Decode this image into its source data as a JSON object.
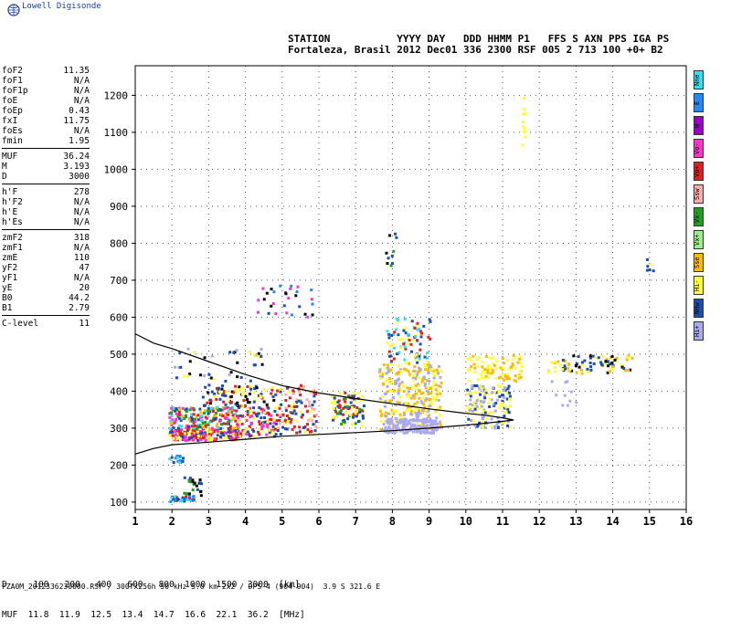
{
  "brand": "Lowell Digisonde",
  "header": {
    "line1": "STATION           YYYY DAY   DDD HHMM P1   FFS S AXN PPS IGA PS",
    "line2": "Fortaleza, Brasil 2012 Dec01 336 2300 RSF 005 2 713 100 +0+ B2"
  },
  "params": [
    [
      [
        "foF2",
        "11.35"
      ],
      [
        "foF1",
        "N/A"
      ],
      [
        "foF1p",
        "N/A"
      ],
      [
        "foE",
        "N/A"
      ],
      [
        "foEp",
        "0.43"
      ],
      [
        "fxI",
        "11.75"
      ],
      [
        "foEs",
        "N/A"
      ],
      [
        "fmin",
        "1.95"
      ]
    ],
    [
      [
        "MUF",
        "36.24"
      ],
      [
        "M",
        "3.193"
      ],
      [
        "D",
        "3000"
      ]
    ],
    [
      [
        "h'F",
        "278"
      ],
      [
        "h'F2",
        "N/A"
      ],
      [
        "h'E",
        "N/A"
      ],
      [
        "h'Es",
        "N/A"
      ]
    ],
    [
      [
        "zmF2",
        "318"
      ],
      [
        "zmF1",
        "N/A"
      ],
      [
        "zmE",
        "110"
      ],
      [
        "yF2",
        "47"
      ],
      [
        "yF1",
        "N/A"
      ],
      [
        "yE",
        "20"
      ],
      [
        "B0",
        "44.2"
      ],
      [
        "B1",
        "2.79"
      ]
    ],
    [
      [
        "C-level",
        "11"
      ]
    ]
  ],
  "legend": [
    {
      "label": "Nne",
      "color": "#33e0f0"
    },
    {
      "label": "E",
      "color": "#2288ff"
    },
    {
      "label": "W",
      "color": "#9a00c8"
    },
    {
      "label": "Vo-",
      "color": "#ff33d0"
    },
    {
      "label": "Vo+",
      "color": "#e02020"
    },
    {
      "label": "Ssw",
      "color": "#ffaaaa"
    },
    {
      "label": "Vx-",
      "color": "#20a020"
    },
    {
      "label": "Vx+",
      "color": "#99ee88"
    },
    {
      "label": "Sse",
      "color": "#ffbb00"
    },
    {
      "label": "Hi-",
      "color": "#ffff33"
    },
    {
      "label": "Nnw",
      "color": "#1a4fb0"
    },
    {
      "label": "Hi+",
      "color": "#aaaaee"
    }
  ],
  "muf_table": {
    "d_row": "D     100   200   400   600   800  1000  1500  3000  [km]",
    "muf_row": "MUF  11.8  11.9  12.5  13.4  14.7  16.6  22.1  36.2  [MHz]"
  },
  "footer": "FZA0M_2012336230000.RSF / 300fx256h 50 kHz 5.0 km 2x2 / DPS-4 (904-904)  3.9 S 321.6 E",
  "chart_data": {
    "type": "scatter",
    "xlim": [
      1,
      16
    ],
    "ylim": [
      80,
      1280
    ],
    "x_ticks": [
      "1",
      "2",
      "3",
      "4",
      "5",
      "6",
      "7",
      "8",
      "9",
      "10",
      "11",
      "12",
      "13",
      "14",
      "15",
      "16"
    ],
    "y_ticks": [
      "100",
      "200",
      "300",
      "400",
      "500",
      "600",
      "700",
      "800",
      "900",
      "1000",
      "1100",
      "1200"
    ],
    "grid": true,
    "profile_curve": [
      [
        1.0,
        230
      ],
      [
        1.5,
        245
      ],
      [
        2.0,
        255
      ],
      [
        3.0,
        262
      ],
      [
        4.0,
        270
      ],
      [
        5.0,
        278
      ],
      [
        6.0,
        283
      ],
      [
        7.0,
        288
      ],
      [
        8.0,
        293
      ],
      [
        9.0,
        300
      ],
      [
        10.0,
        308
      ],
      [
        10.8,
        316
      ],
      [
        11.3,
        322
      ],
      [
        11.0,
        328
      ],
      [
        10.5,
        335
      ],
      [
        10.0,
        340
      ],
      [
        9.0,
        352
      ],
      [
        8.0,
        366
      ],
      [
        7.0,
        380
      ],
      [
        6.0,
        395
      ],
      [
        5.0,
        415
      ],
      [
        4.0,
        445
      ],
      [
        3.0,
        480
      ],
      [
        2.0,
        515
      ],
      [
        1.5,
        530
      ],
      [
        1.0,
        555
      ]
    ],
    "echo_clusters": [
      {
        "x": [
          1.9,
          2.6
        ],
        "y": [
          105,
          120
        ],
        "colors": [
          "#33e0f0",
          "#2288ff",
          "#1a4fb0",
          "#e02020"
        ],
        "n": 40
      },
      {
        "x": [
          2.3,
          2.8
        ],
        "y": [
          120,
          175
        ],
        "colors": [
          "#20a020",
          "#1a4fb0",
          "#000000"
        ],
        "n": 25
      },
      {
        "x": [
          1.9,
          2.3
        ],
        "y": [
          210,
          230
        ],
        "colors": [
          "#2288ff",
          "#1a4fb0",
          "#33e0f0"
        ],
        "n": 15
      },
      {
        "x": [
          1.9,
          3.8
        ],
        "y": [
          270,
          300
        ],
        "colors": [
          "#e02020",
          "#ff33d0",
          "#1a4fb0",
          "#ffff33"
        ],
        "n": 220
      },
      {
        "x": [
          1.9,
          3.8
        ],
        "y": [
          300,
          360
        ],
        "colors": [
          "#e02020",
          "#1a4fb0",
          "#ff33d0",
          "#ffbb00",
          "#20a020",
          "#33e0f0"
        ],
        "n": 200
      },
      {
        "x": [
          2.8,
          4.8
        ],
        "y": [
          360,
          420
        ],
        "colors": [
          "#000000",
          "#ffff33",
          "#e02020",
          "#1a4fb0"
        ],
        "n": 90
      },
      {
        "x": [
          3.8,
          4.8
        ],
        "y": [
          280,
          360
        ],
        "colors": [
          "#ffff33",
          "#e02020",
          "#ff33d0",
          "#1a4fb0"
        ],
        "n": 100
      },
      {
        "x": [
          4.8,
          5.9
        ],
        "y": [
          285,
          420
        ],
        "colors": [
          "#ffff33",
          "#e02020",
          "#ffaaaa",
          "#1a4fb0"
        ],
        "n": 120
      },
      {
        "x": [
          6.3,
          7.2
        ],
        "y": [
          310,
          400
        ],
        "colors": [
          "#ffff33",
          "#e02020",
          "#20a020",
          "#1a4fb0"
        ],
        "n": 90
      },
      {
        "x": [
          7.6,
          9.3
        ],
        "y": [
          300,
          480
        ],
        "colors": [
          "#ffff33",
          "#aaaaee",
          "#ffbb00"
        ],
        "n": 320
      },
      {
        "x": [
          7.8,
          9.0
        ],
        "y": [
          480,
          600
        ],
        "colors": [
          "#ffff33",
          "#e02020",
          "#1a4fb0",
          "#33e0f0"
        ],
        "n": 80
      },
      {
        "x": [
          7.7,
          9.2
        ],
        "y": [
          290,
          330
        ],
        "colors": [
          "#aaaaee"
        ],
        "n": 160
      },
      {
        "x": [
          10.0,
          11.2
        ],
        "y": [
          300,
          420
        ],
        "colors": [
          "#aaaaee",
          "#ffff33",
          "#1a4fb0"
        ],
        "n": 160
      },
      {
        "x": [
          10.0,
          11.5
        ],
        "y": [
          430,
          500
        ],
        "colors": [
          "#ffff33",
          "#ffbb00"
        ],
        "n": 90
      },
      {
        "x": [
          12.2,
          14.5
        ],
        "y": [
          450,
          500
        ],
        "colors": [
          "#ffff33",
          "#ffbb00",
          "#1a4fb0",
          "#000000"
        ],
        "n": 90
      },
      {
        "x": [
          12.3,
          13.0
        ],
        "y": [
          350,
          430
        ],
        "colors": [
          "#aaaaee"
        ],
        "n": 10
      },
      {
        "x": [
          4.3,
          5.8
        ],
        "y": [
          600,
          690
        ],
        "colors": [
          "#ff33d0",
          "#2288ff",
          "#000000",
          "#1a4fb0"
        ],
        "n": 30
      },
      {
        "x": [
          2.0,
          4.5
        ],
        "y": [
          420,
          520
        ],
        "colors": [
          "#000000",
          "#1a4fb0",
          "#ffff33",
          "#aaaaee"
        ],
        "n": 40
      },
      {
        "x": [
          11.5,
          11.6
        ],
        "y": [
          1050,
          1240
        ],
        "colors": [
          "#ffff33"
        ],
        "n": 12
      },
      {
        "x": [
          7.8,
          8.1
        ],
        "y": [
          740,
          830
        ],
        "colors": [
          "#1a4fb0",
          "#20a020",
          "#000000"
        ],
        "n": 10
      },
      {
        "x": [
          14.9,
          15.1
        ],
        "y": [
          720,
          760
        ],
        "colors": [
          "#ffff33",
          "#1a4fb0"
        ],
        "n": 6
      }
    ]
  }
}
